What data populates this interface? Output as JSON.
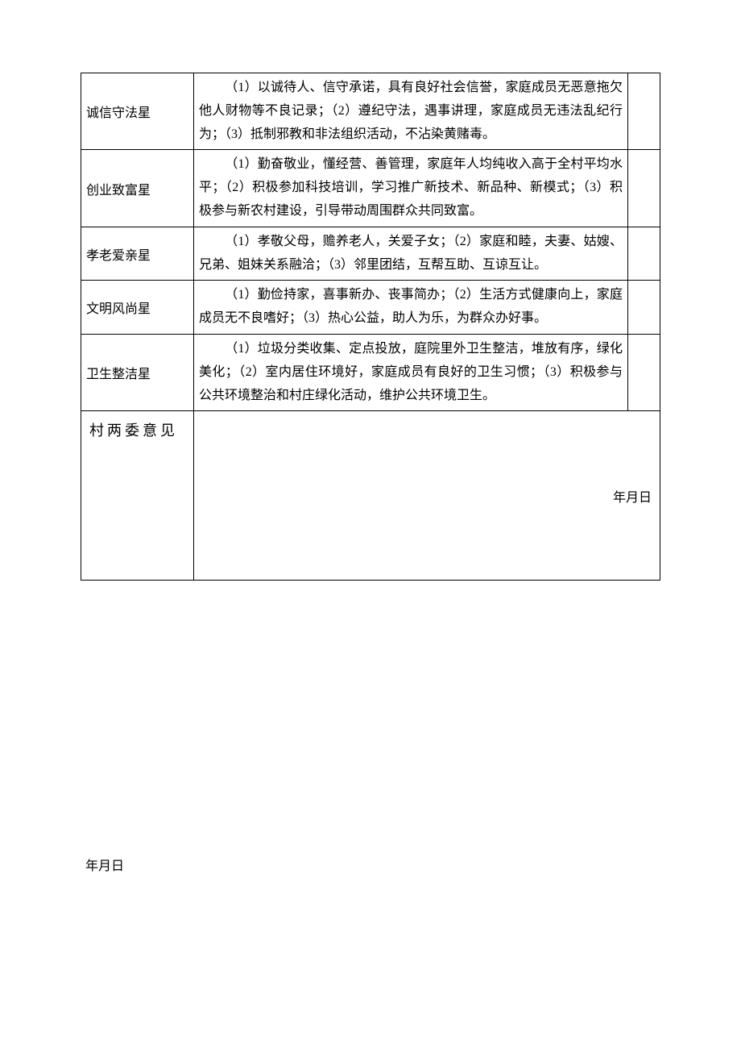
{
  "rows": [
    {
      "label": "诚信守法星",
      "desc": "（1）以诚待人、信守承诺，具有良好社会信誉，家庭成员无恶意拖欠他人财物等不良记录；（2）遵纪守法，遇事讲理，家庭成员无违法乱纪行为；（3）抵制邪教和非法组织活动，不沾染黄赌毒。"
    },
    {
      "label": "创业致富星",
      "desc": "（1）勤奋敬业，懂经营、善管理，家庭年人均纯收入高于全村平均水平；（2）积极参加科技培训，学习推广新技术、新品种、新模式；（3）积极参与新农村建设，引导带动周围群众共同致富。"
    },
    {
      "label": "孝老爱亲星",
      "desc": "（1）孝敬父母，赡养老人，关爱子女；（2）家庭和睦，夫妻、姑嫂、兄弟、姐妹关系融洽；（3）邻里团结，互帮互助、互谅互让。"
    },
    {
      "label": "文明风尚星",
      "desc": "（1）勤俭持家，喜事新办、丧事简办；（2）生活方式健康向上，家庭成员无不良嗜好；（3）热心公益，助人为乐，为群众办好事。"
    },
    {
      "label": "卫生整洁星",
      "desc": "（1）垃圾分类收集、定点投放，庭院里外卫生整洁，堆放有序，绿化美化；（2）室内居住环境好，家庭成员有良好的卫生习惯；（3）积极参与公共环境整治和村庄绿化活动，维护公共环境卫生。"
    }
  ],
  "opinion": {
    "label": "村两委意见",
    "date_text": "年月日"
  },
  "bottom_date": "年月日",
  "style": {
    "border_color": "#000000",
    "background_color": "#ffffff",
    "text_color": "#000000",
    "font_family": "SimSun",
    "base_fontsize": 16,
    "opinion_fontsize": 18,
    "line_height": 1.8
  }
}
